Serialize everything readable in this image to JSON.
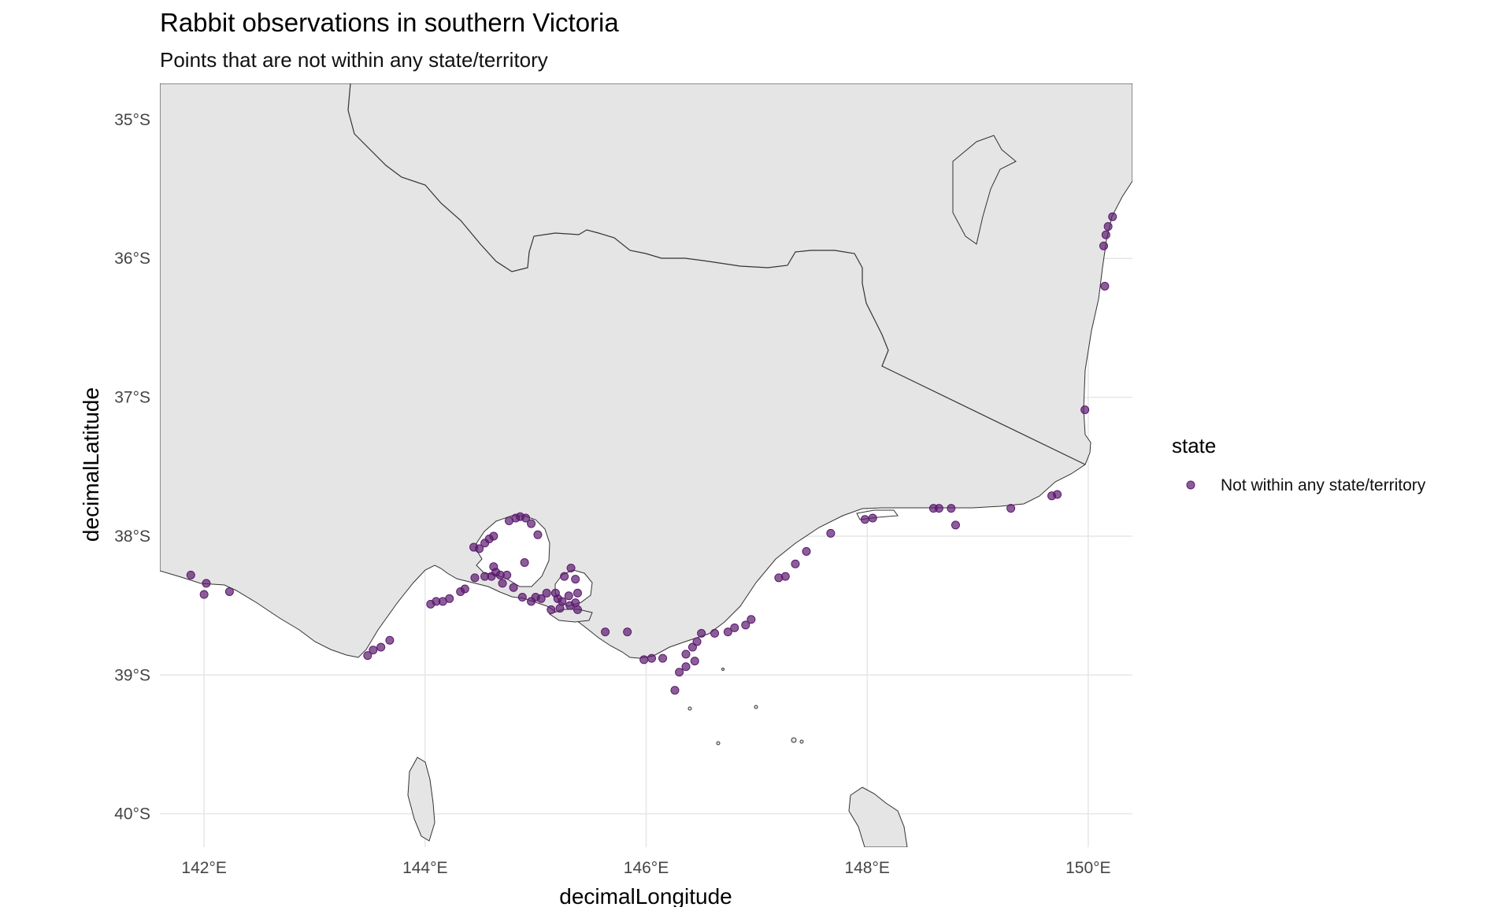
{
  "chart_data": {
    "type": "scatter",
    "title": "Rabbit observations in southern Victoria",
    "subtitle": "Points that are not within any state/territory",
    "xlabel": "decimalLongitude",
    "ylabel": "decimalLatitude",
    "xlim": [
      141.6,
      150.4
    ],
    "ylim": [
      -40.24,
      -34.74
    ],
    "x_ticks": [
      {
        "value": 142,
        "label": "142°E"
      },
      {
        "value": 144,
        "label": "144°E"
      },
      {
        "value": 146,
        "label": "146°E"
      },
      {
        "value": 148,
        "label": "148°E"
      },
      {
        "value": 150,
        "label": "150°E"
      }
    ],
    "y_ticks": [
      {
        "value": -35,
        "label": "35°S"
      },
      {
        "value": -36,
        "label": "36°S"
      },
      {
        "value": -37,
        "label": "37°S"
      },
      {
        "value": -38,
        "label": "38°S"
      },
      {
        "value": -39,
        "label": "39°S"
      },
      {
        "value": -40,
        "label": "40°S"
      }
    ],
    "grid": true,
    "legend": {
      "title": "state",
      "position": "right",
      "entries": [
        "Not within any state/territory"
      ]
    },
    "colors": {
      "point": "#5b1a6e",
      "land": "#e5e5e5",
      "border": "#333333",
      "grid": "#e6e6e6"
    },
    "series": [
      {
        "name": "Not within any state/territory",
        "points": [
          [
            150.22,
            -35.7
          ],
          [
            150.18,
            -35.77
          ],
          [
            150.16,
            -35.83
          ],
          [
            150.14,
            -35.91
          ],
          [
            150.15,
            -36.2
          ],
          [
            149.97,
            -37.09
          ],
          [
            149.72,
            -37.7
          ],
          [
            149.67,
            -37.71
          ],
          [
            149.3,
            -37.8
          ],
          [
            148.8,
            -37.92
          ],
          [
            148.76,
            -37.8
          ],
          [
            148.65,
            -37.8
          ],
          [
            148.6,
            -37.8
          ],
          [
            148.05,
            -37.87
          ],
          [
            147.98,
            -37.88
          ],
          [
            147.67,
            -37.98
          ],
          [
            147.45,
            -38.11
          ],
          [
            147.35,
            -38.2
          ],
          [
            147.26,
            -38.29
          ],
          [
            147.2,
            -38.3
          ],
          [
            146.95,
            -38.6
          ],
          [
            146.9,
            -38.64
          ],
          [
            146.8,
            -38.66
          ],
          [
            146.74,
            -38.69
          ],
          [
            146.62,
            -38.7
          ],
          [
            146.5,
            -38.7
          ],
          [
            146.46,
            -38.76
          ],
          [
            146.42,
            -38.8
          ],
          [
            146.36,
            -38.85
          ],
          [
            146.44,
            -38.9
          ],
          [
            146.36,
            -38.94
          ],
          [
            146.3,
            -38.98
          ],
          [
            146.15,
            -38.88
          ],
          [
            146.26,
            -39.11
          ],
          [
            146.05,
            -38.88
          ],
          [
            145.98,
            -38.89
          ],
          [
            145.83,
            -38.69
          ],
          [
            145.63,
            -38.69
          ],
          [
            145.38,
            -38.53
          ],
          [
            145.36,
            -38.48
          ],
          [
            145.38,
            -38.41
          ],
          [
            145.3,
            -38.43
          ],
          [
            145.31,
            -38.5
          ],
          [
            145.24,
            -38.47
          ],
          [
            145.2,
            -38.45
          ],
          [
            145.18,
            -38.41
          ],
          [
            145.22,
            -38.52
          ],
          [
            145.14,
            -38.53
          ],
          [
            145.1,
            -38.41
          ],
          [
            145.05,
            -38.45
          ],
          [
            145.0,
            -38.44
          ],
          [
            144.96,
            -38.47
          ],
          [
            144.88,
            -38.44
          ],
          [
            144.8,
            -38.37
          ],
          [
            144.7,
            -38.34
          ],
          [
            144.68,
            -38.28
          ],
          [
            144.74,
            -38.28
          ],
          [
            144.64,
            -38.26
          ],
          [
            144.62,
            -38.22
          ],
          [
            144.6,
            -38.29
          ],
          [
            144.54,
            -38.29
          ],
          [
            144.45,
            -38.3
          ],
          [
            144.36,
            -38.38
          ],
          [
            144.32,
            -38.4
          ],
          [
            144.22,
            -38.45
          ],
          [
            144.16,
            -38.47
          ],
          [
            144.1,
            -38.47
          ],
          [
            144.05,
            -38.49
          ],
          [
            143.68,
            -38.75
          ],
          [
            143.6,
            -38.8
          ],
          [
            143.53,
            -38.82
          ],
          [
            143.48,
            -38.86
          ],
          [
            142.23,
            -38.4
          ],
          [
            142.02,
            -38.34
          ],
          [
            142.0,
            -38.42
          ],
          [
            141.88,
            -38.28
          ],
          [
            144.44,
            -38.08
          ],
          [
            144.49,
            -38.09
          ],
          [
            144.54,
            -38.05
          ],
          [
            144.58,
            -38.02
          ],
          [
            144.62,
            -38.0
          ],
          [
            144.86,
            -37.86
          ],
          [
            144.82,
            -37.87
          ],
          [
            144.91,
            -37.87
          ],
          [
            144.96,
            -37.91
          ],
          [
            144.76,
            -37.89
          ],
          [
            145.02,
            -37.99
          ],
          [
            144.9,
            -38.19
          ],
          [
            145.26,
            -38.29
          ],
          [
            145.32,
            -38.23
          ],
          [
            145.36,
            -38.31
          ]
        ]
      }
    ]
  }
}
